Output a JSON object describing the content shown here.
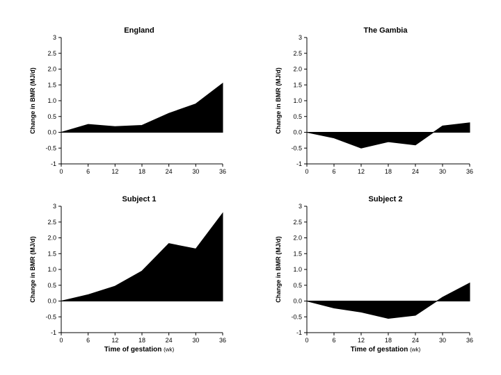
{
  "chart_data": [
    {
      "type": "area",
      "title": "England",
      "ylabel": "Change in BMR (MJ/d)",
      "xlabel": "",
      "x": [
        0,
        6,
        12,
        18,
        24,
        30,
        36
      ],
      "values": [
        0.0,
        0.25,
        0.18,
        0.22,
        0.6,
        0.9,
        1.55
      ],
      "xlim": [
        0,
        36
      ],
      "ylim": [
        -1,
        3
      ],
      "xticks": [
        "0",
        "6",
        "12",
        "18",
        "24",
        "30",
        "36"
      ],
      "yticks": [
        "-1",
        "-0.5",
        "0.0",
        "0.5",
        "1.0",
        "1.5",
        "2.0",
        "2.5",
        "3"
      ]
    },
    {
      "type": "area",
      "title": "The Gambia",
      "ylabel": "Change in BMR (MJ/d)",
      "xlabel": "",
      "x": [
        0,
        6,
        12,
        18,
        24,
        30,
        36
      ],
      "values": [
        0.0,
        -0.18,
        -0.5,
        -0.3,
        -0.4,
        0.2,
        0.3
      ],
      "xlim": [
        0,
        36
      ],
      "ylim": [
        -1,
        3
      ],
      "xticks": [
        "0",
        "6",
        "12",
        "18",
        "24",
        "30",
        "36"
      ],
      "yticks": [
        "-1",
        "-0.5",
        "0.0",
        "0.5",
        "1.0",
        "1.5",
        "2.0",
        "2.5",
        "3"
      ]
    },
    {
      "type": "area",
      "title": "Subject 1",
      "ylabel": "Change in BMR (MJ/d)",
      "xlabel": "Time of gestation",
      "xunit": "(wk)",
      "x": [
        0,
        6,
        12,
        18,
        24,
        30,
        36
      ],
      "values": [
        0.0,
        0.2,
        0.47,
        0.95,
        1.82,
        1.65,
        2.78
      ],
      "xlim": [
        0,
        36
      ],
      "ylim": [
        -1,
        3
      ],
      "xticks": [
        "0",
        "6",
        "12",
        "18",
        "24",
        "30",
        "36"
      ],
      "yticks": [
        "-1",
        "-0.5",
        "0.0",
        "0.5",
        "1.0",
        "1.5",
        "2.0",
        "2.5",
        "3"
      ]
    },
    {
      "type": "area",
      "title": "Subject 2",
      "ylabel": "Change in BMR (MJ/d)",
      "xlabel": "Time of gestation",
      "xunit": "(wk)",
      "x": [
        0,
        6,
        12,
        18,
        24,
        30,
        36
      ],
      "values": [
        0.0,
        -0.22,
        -0.35,
        -0.55,
        -0.45,
        0.12,
        0.57
      ],
      "xlim": [
        0,
        36
      ],
      "ylim": [
        -1,
        3
      ],
      "xticks": [
        "0",
        "6",
        "12",
        "18",
        "24",
        "30",
        "36"
      ],
      "yticks": [
        "-1",
        "-0.5",
        "0.0",
        "0.5",
        "1.0",
        "1.5",
        "2.0",
        "2.5",
        "3"
      ]
    }
  ],
  "colors": {
    "fill": "#000000",
    "axis": "#000000",
    "background": "#ffffff"
  }
}
